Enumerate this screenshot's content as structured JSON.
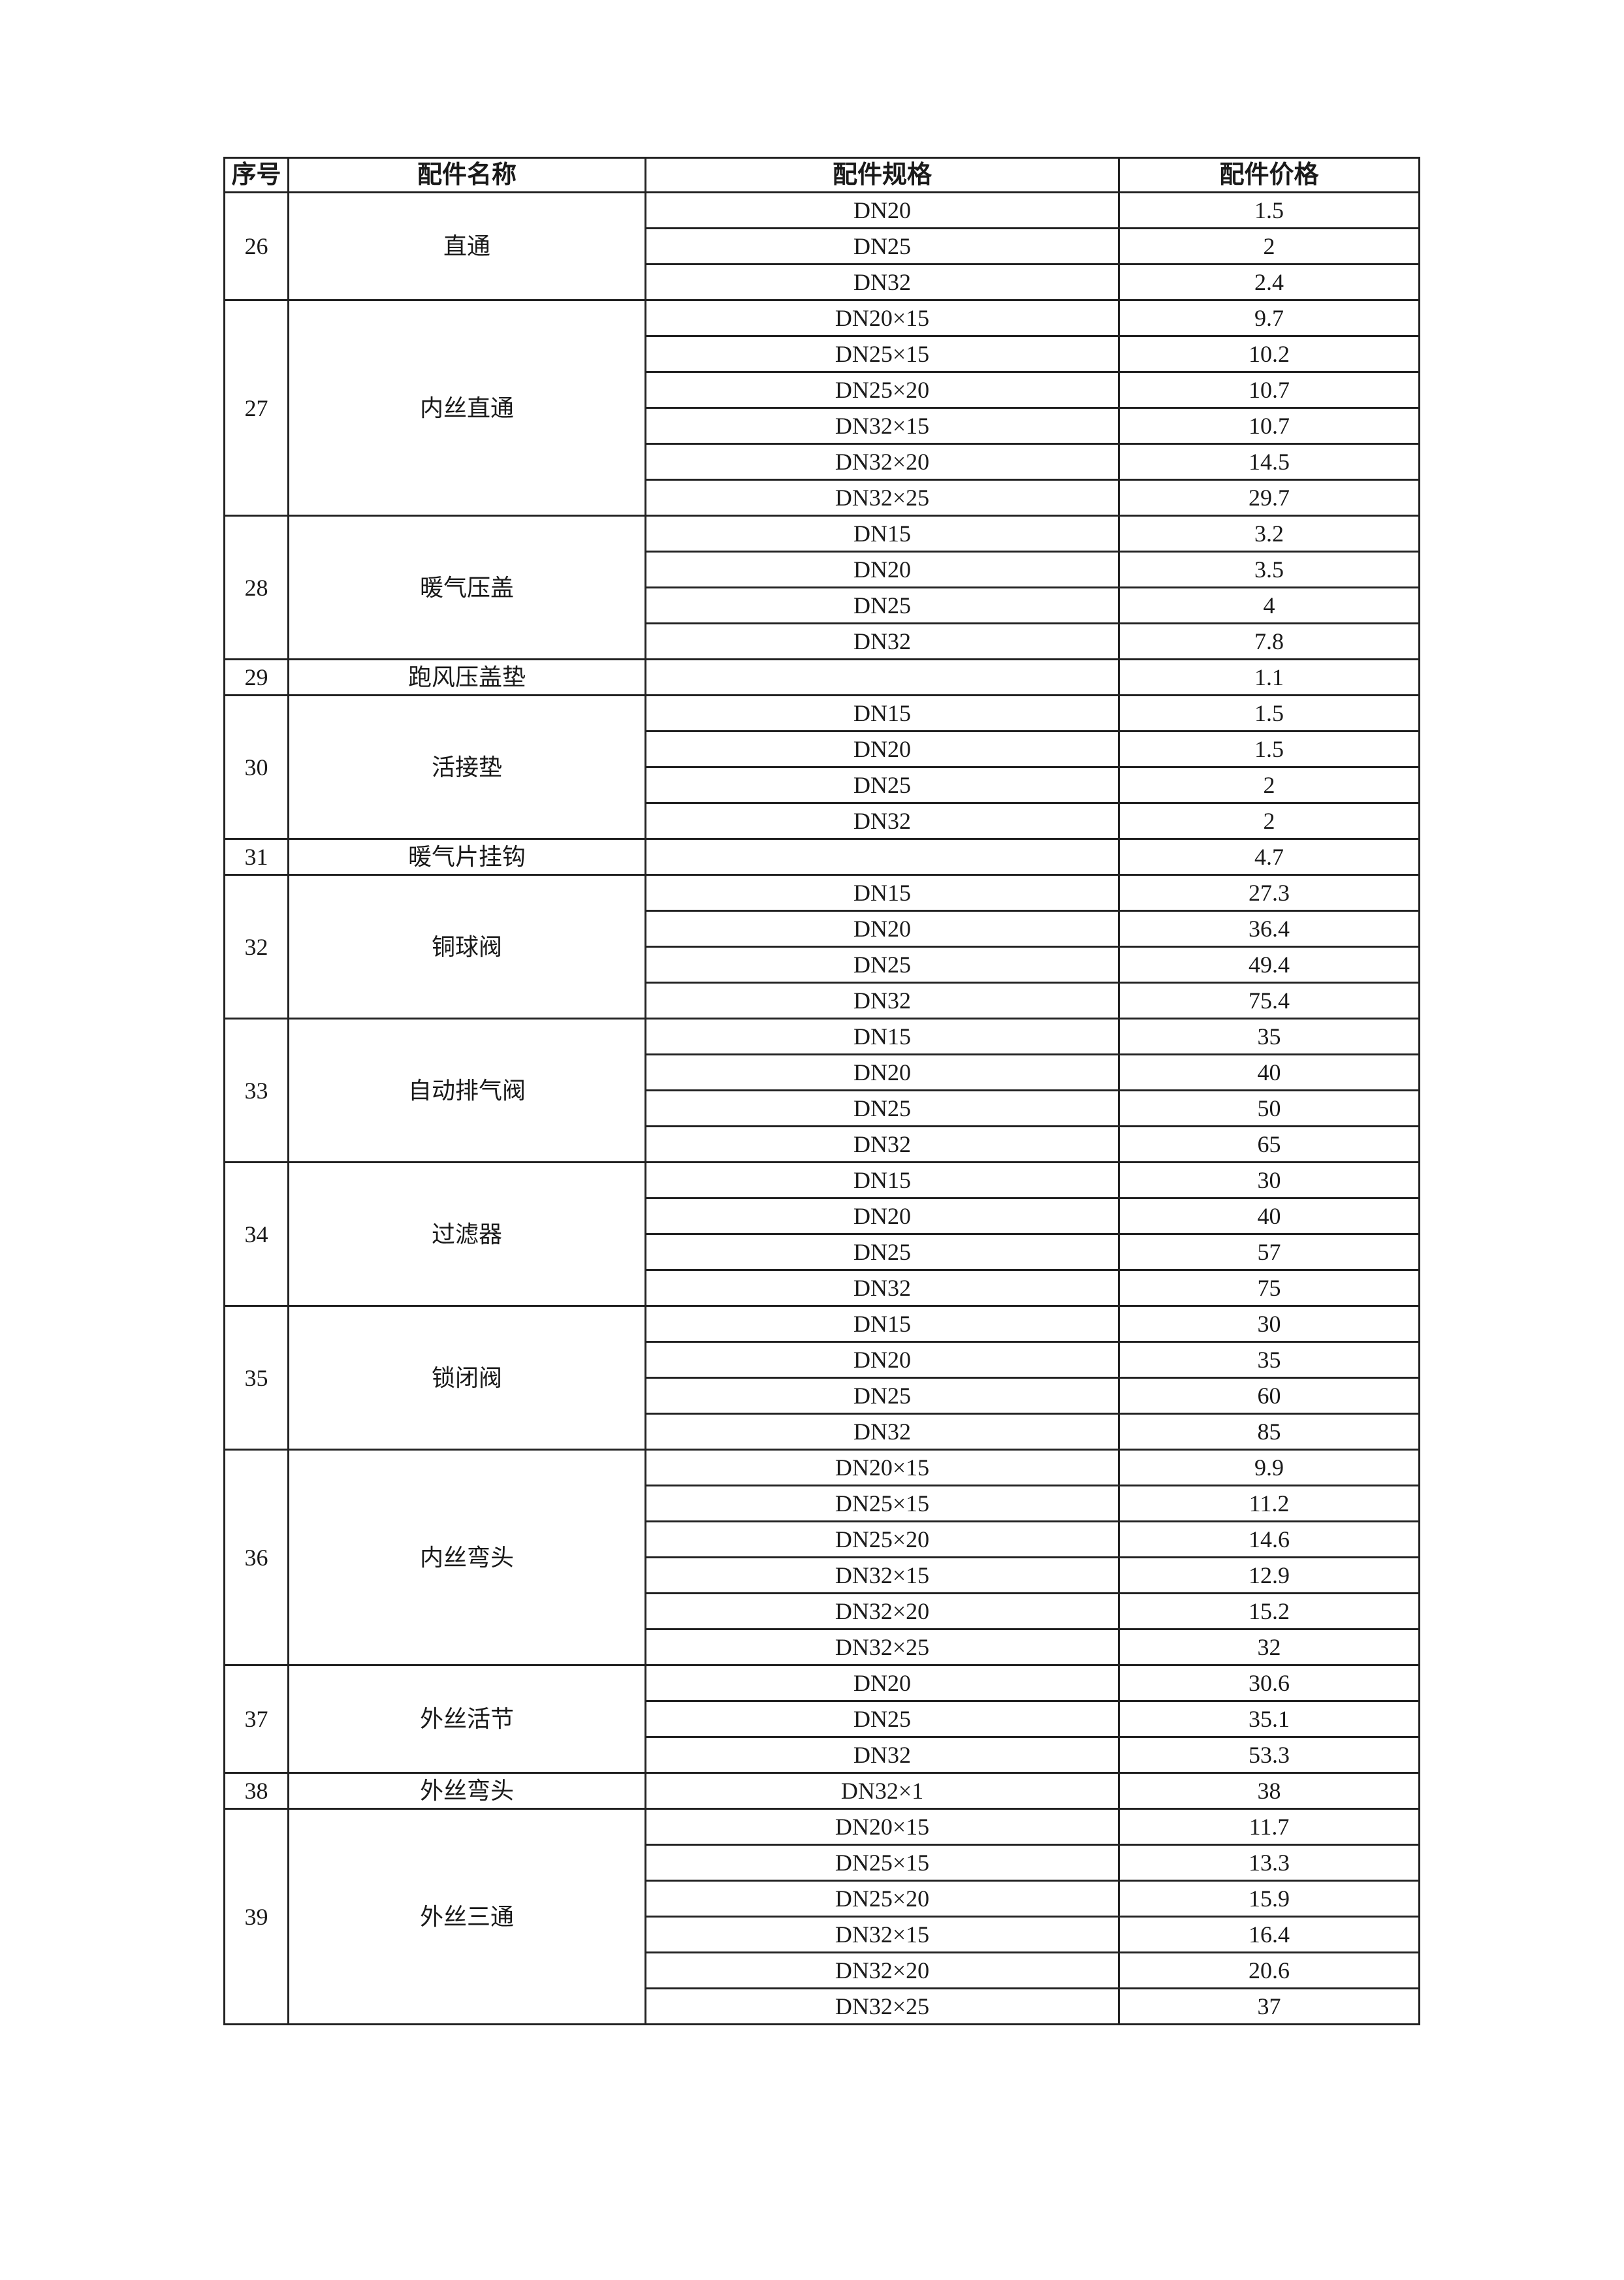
{
  "table": {
    "headers": [
      "序号",
      "配件名称",
      "配件规格",
      "配件价格"
    ],
    "groups": [
      {
        "no": "26",
        "name": "直通",
        "items": [
          [
            "DN20",
            "1.5"
          ],
          [
            "DN25",
            "2"
          ],
          [
            "DN32",
            "2.4"
          ]
        ]
      },
      {
        "no": "27",
        "name": "内丝直通",
        "items": [
          [
            "DN20×15",
            "9.7"
          ],
          [
            "DN25×15",
            "10.2"
          ],
          [
            "DN25×20",
            "10.7"
          ],
          [
            "DN32×15",
            "10.7"
          ],
          [
            "DN32×20",
            "14.5"
          ],
          [
            "DN32×25",
            "29.7"
          ]
        ]
      },
      {
        "no": "28",
        "name": "暖气压盖",
        "items": [
          [
            "DN15",
            "3.2"
          ],
          [
            "DN20",
            "3.5"
          ],
          [
            "DN25",
            "4"
          ],
          [
            "DN32",
            "7.8"
          ]
        ]
      },
      {
        "no": "29",
        "name": "跑风压盖垫",
        "items": [
          [
            "",
            "1.1"
          ]
        ]
      },
      {
        "no": "30",
        "name": "活接垫",
        "items": [
          [
            "DN15",
            "1.5"
          ],
          [
            "DN20",
            "1.5"
          ],
          [
            "DN25",
            "2"
          ],
          [
            "DN32",
            "2"
          ]
        ]
      },
      {
        "no": "31",
        "name": "暖气片挂钩",
        "items": [
          [
            "",
            "4.7"
          ]
        ]
      },
      {
        "no": "32",
        "name": "铜球阀",
        "items": [
          [
            "DN15",
            "27.3"
          ],
          [
            "DN20",
            "36.4"
          ],
          [
            "DN25",
            "49.4"
          ],
          [
            "DN32",
            "75.4"
          ]
        ]
      },
      {
        "no": "33",
        "name": "自动排气阀",
        "items": [
          [
            "DN15",
            "35"
          ],
          [
            "DN20",
            "40"
          ],
          [
            "DN25",
            "50"
          ],
          [
            "DN32",
            "65"
          ]
        ]
      },
      {
        "no": "34",
        "name": "过滤器",
        "items": [
          [
            "DN15",
            "30"
          ],
          [
            "DN20",
            "40"
          ],
          [
            "DN25",
            "57"
          ],
          [
            "DN32",
            "75"
          ]
        ]
      },
      {
        "no": "35",
        "name": "锁闭阀",
        "items": [
          [
            "DN15",
            "30"
          ],
          [
            "DN20",
            "35"
          ],
          [
            "DN25",
            "60"
          ],
          [
            "DN32",
            "85"
          ]
        ]
      },
      {
        "no": "36",
        "name": "内丝弯头",
        "items": [
          [
            "DN20×15",
            "9.9"
          ],
          [
            "DN25×15",
            "11.2"
          ],
          [
            "DN25×20",
            "14.6"
          ],
          [
            "DN32×15",
            "12.9"
          ],
          [
            "DN32×20",
            "15.2"
          ],
          [
            "DN32×25",
            "32"
          ]
        ]
      },
      {
        "no": "37",
        "name": "外丝活节",
        "items": [
          [
            "DN20",
            "30.6"
          ],
          [
            "DN25",
            "35.1"
          ],
          [
            "DN32",
            "53.3"
          ]
        ]
      },
      {
        "no": "38",
        "name": "外丝弯头",
        "items": [
          [
            "DN32×1",
            "38"
          ]
        ]
      },
      {
        "no": "39",
        "name": "外丝三通",
        "items": [
          [
            "DN20×15",
            "11.7"
          ],
          [
            "DN25×15",
            "13.3"
          ],
          [
            "DN25×20",
            "15.9"
          ],
          [
            "DN32×15",
            "16.4"
          ],
          [
            "DN32×20",
            "20.6"
          ],
          [
            "DN32×25",
            "37"
          ]
        ]
      }
    ]
  }
}
